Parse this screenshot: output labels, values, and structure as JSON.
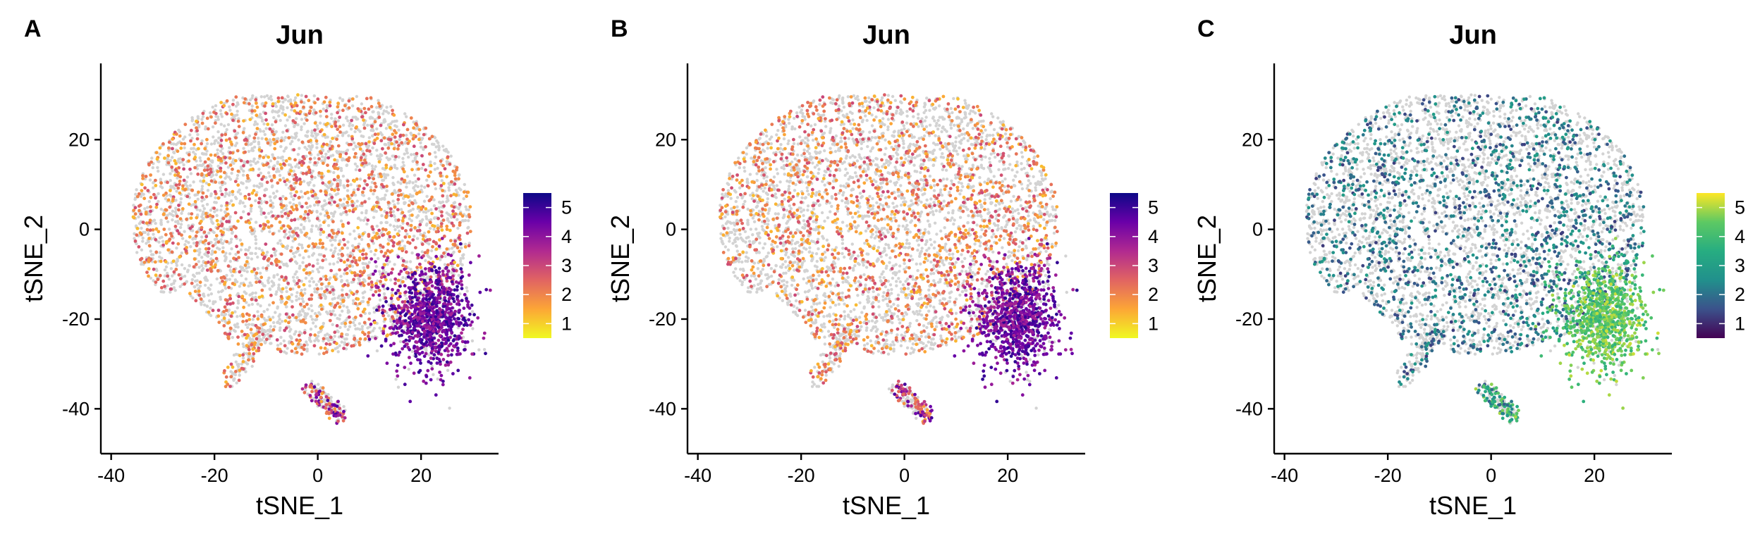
{
  "chart_data": [
    {
      "type": "scatter",
      "panel_label": "A",
      "title": "Jun",
      "xlabel": "tSNE_1",
      "ylabel": "tSNE_2",
      "xlim": [
        -42,
        35
      ],
      "ylim": [
        -50,
        37
      ],
      "xticks": [
        -40,
        -20,
        0,
        20
      ],
      "yticks": [
        -40,
        -20,
        0,
        20
      ],
      "colorbar": {
        "ticks": [
          1,
          2,
          3,
          4,
          5
        ],
        "range": [
          0.5,
          5.5
        ],
        "palette": "plasma_reversed",
        "colors": [
          "#f0f921",
          "#fca636",
          "#e16462",
          "#b12a90",
          "#6a00a8",
          "#0d0887"
        ]
      },
      "background_color": "#d3d3d3",
      "grid": false,
      "legend_position": "right"
    },
    {
      "type": "scatter",
      "panel_label": "B",
      "title": "Jun",
      "xlabel": "tSNE_1",
      "ylabel": "tSNE_2",
      "xlim": [
        -42,
        35
      ],
      "ylim": [
        -50,
        37
      ],
      "xticks": [
        -40,
        -20,
        0,
        20
      ],
      "yticks": [
        -40,
        -20,
        0,
        20
      ],
      "colorbar": {
        "ticks": [
          1,
          2,
          3,
          4,
          5
        ],
        "range": [
          0.5,
          5.5
        ],
        "palette": "plasma_reversed",
        "colors": [
          "#f0f921",
          "#fca636",
          "#e16462",
          "#b12a90",
          "#6a00a8",
          "#0d0887"
        ]
      },
      "background_color": "#d3d3d3",
      "grid": false,
      "legend_position": "right"
    },
    {
      "type": "scatter",
      "panel_label": "C",
      "title": "Jun",
      "xlabel": "tSNE_1",
      "ylabel": "tSNE_2",
      "xlim": [
        -42,
        35
      ],
      "ylim": [
        -50,
        37
      ],
      "xticks": [
        -40,
        -20,
        0,
        20
      ],
      "yticks": [
        -40,
        -20,
        0,
        20
      ],
      "colorbar": {
        "ticks": [
          1,
          2,
          3,
          4,
          5
        ],
        "range": [
          0.5,
          5.5
        ],
        "palette": "viridis",
        "colors": [
          "#440154",
          "#3b528b",
          "#21908c",
          "#27ad81",
          "#5dc963",
          "#fde725"
        ]
      },
      "background_color": "#d3d3d3",
      "grid": false,
      "legend_position": "right"
    }
  ]
}
